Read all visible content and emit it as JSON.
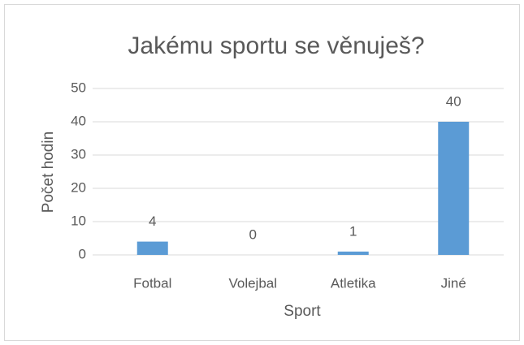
{
  "chart_data": {
    "type": "bar",
    "title": "Jakému sportu se věnuješ?",
    "categories": [
      "Fotbal",
      "Volejbal",
      "Atletika",
      "Jiné"
    ],
    "values": [
      4,
      0,
      1,
      40
    ],
    "color": "#5b9bd5",
    "xlabel": "Sport",
    "ylabel": "Počet hodin",
    "ylim": [
      0,
      50
    ],
    "yticks": [
      0,
      10,
      20,
      30,
      40,
      50
    ],
    "grid": true,
    "data_labels": true
  }
}
